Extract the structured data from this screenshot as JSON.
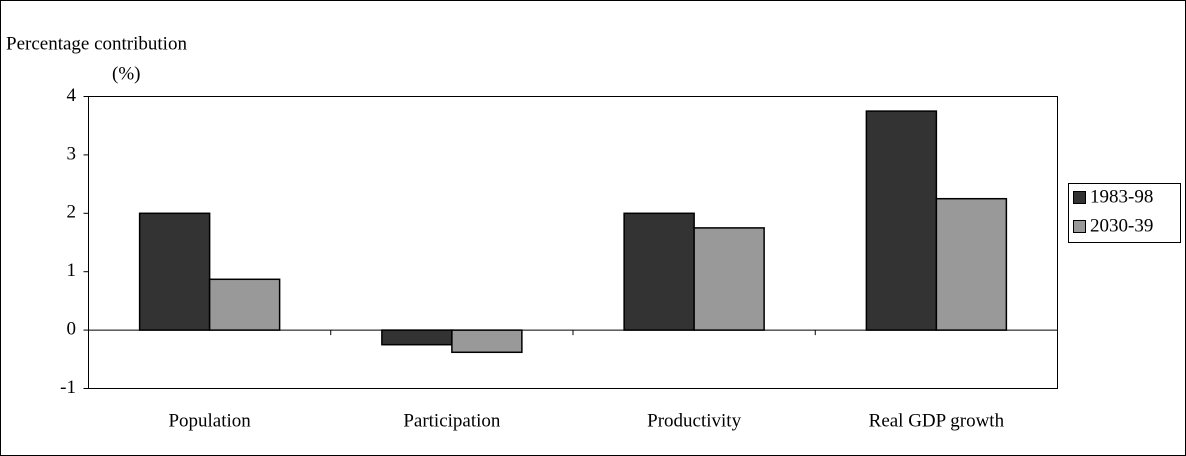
{
  "chart_data": {
    "type": "bar",
    "y_label": "Percentage contribution",
    "y_unit": "(%)",
    "categories": [
      "Population",
      "Participation",
      "Productivity",
      "Real GDP growth"
    ],
    "series": [
      {
        "name": "1983-98",
        "color": "#333333",
        "values": [
          2.0,
          -0.25,
          2.0,
          3.75
        ]
      },
      {
        "name": "2030-39",
        "color": "#999999",
        "values": [
          0.87,
          -0.38,
          1.75,
          2.25
        ]
      }
    ],
    "ylim": [
      -1,
      4
    ],
    "yticks": [
      -1,
      0,
      1,
      2,
      3,
      4
    ],
    "grid": false,
    "legend": "right"
  }
}
